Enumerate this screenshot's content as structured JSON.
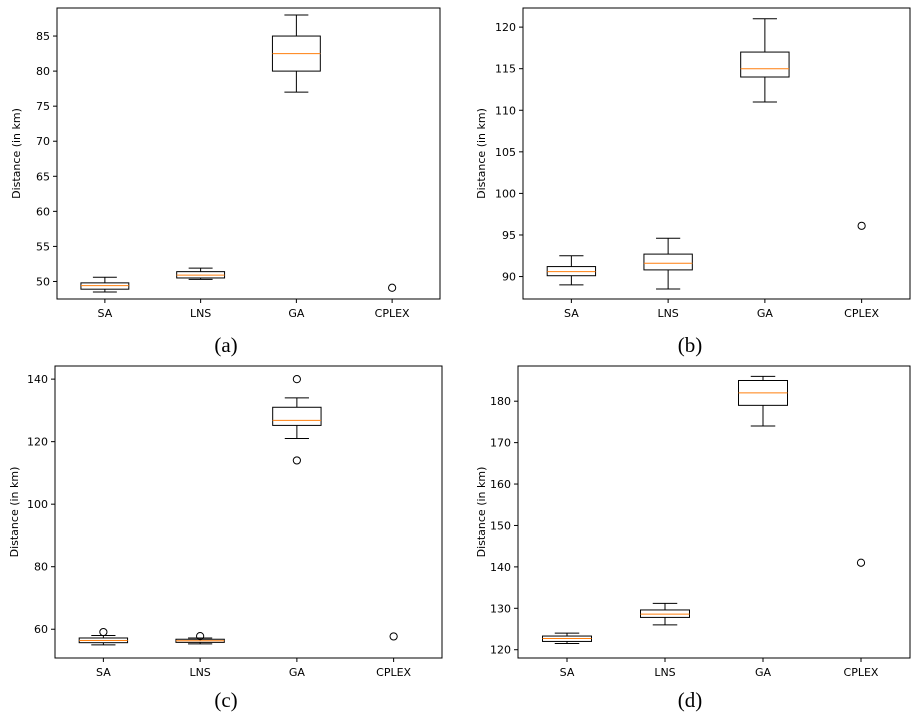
{
  "chart_data": [
    {
      "type": "box",
      "caption": "(a)",
      "ylabel": "Distance (in km)",
      "categories": [
        "SA",
        "LNS",
        "GA",
        "CPLEX"
      ],
      "ylim": [
        47.5,
        89
      ],
      "yticks": [
        50,
        55,
        60,
        65,
        70,
        75,
        80,
        85
      ],
      "boxes": [
        {
          "label": "SA",
          "min": 48.5,
          "q1": 48.9,
          "median": 49.4,
          "q3": 49.8,
          "max": 50.6,
          "fliers": []
        },
        {
          "label": "LNS",
          "min": 50.3,
          "q1": 50.5,
          "median": 50.9,
          "q3": 51.4,
          "max": 51.9,
          "fliers": []
        },
        {
          "label": "GA",
          "min": 77,
          "q1": 80,
          "median": 82.5,
          "q3": 85,
          "max": 88,
          "fliers": []
        },
        {
          "label": "CPLEX",
          "min": null,
          "q1": null,
          "median": 49.1,
          "q3": null,
          "max": null,
          "fliers": [
            49.1
          ]
        }
      ]
    },
    {
      "type": "box",
      "caption": "(b)",
      "ylabel": "Distance (in km)",
      "categories": [
        "SA",
        "LNS",
        "GA",
        "CPLEX"
      ],
      "ylim": [
        87.3,
        122.3
      ],
      "yticks": [
        90,
        95,
        100,
        105,
        110,
        115,
        120
      ],
      "boxes": [
        {
          "label": "SA",
          "min": 89,
          "q1": 90.1,
          "median": 90.6,
          "q3": 91.2,
          "max": 92.5,
          "fliers": []
        },
        {
          "label": "LNS",
          "min": 88.5,
          "q1": 90.8,
          "median": 91.6,
          "q3": 92.7,
          "max": 94.6,
          "fliers": []
        },
        {
          "label": "GA",
          "min": 111,
          "q1": 114,
          "median": 115,
          "q3": 117,
          "max": 121,
          "fliers": []
        },
        {
          "label": "CPLEX",
          "min": null,
          "q1": null,
          "median": 96.1,
          "q3": null,
          "max": null,
          "fliers": [
            96.1
          ]
        }
      ]
    },
    {
      "type": "box",
      "caption": "(c)",
      "ylabel": "Distance (in km)",
      "categories": [
        "SA",
        "LNS",
        "GA",
        "CPLEX"
      ],
      "ylim": [
        50.8,
        144.2
      ],
      "yticks": [
        60,
        80,
        100,
        120,
        140
      ],
      "boxes": [
        {
          "label": "SA",
          "min": 55,
          "q1": 55.7,
          "median": 56.4,
          "q3": 57.2,
          "max": 58,
          "fliers": [
            59.1
          ]
        },
        {
          "label": "LNS",
          "min": 55.3,
          "q1": 55.8,
          "median": 56.3,
          "q3": 56.8,
          "max": 57.2,
          "fliers": [
            57.8
          ]
        },
        {
          "label": "GA",
          "min": 121,
          "q1": 125.2,
          "median": 126.8,
          "q3": 131,
          "max": 134,
          "fliers": [
            140,
            114
          ]
        },
        {
          "label": "CPLEX",
          "min": null,
          "q1": null,
          "median": 57.7,
          "q3": null,
          "max": null,
          "fliers": [
            57.7
          ]
        }
      ]
    },
    {
      "type": "box",
      "caption": "(d)",
      "ylabel": "Distance (in km)",
      "categories": [
        "SA",
        "LNS",
        "GA",
        "CPLEX"
      ],
      "ylim": [
        118,
        188.5
      ],
      "yticks": [
        120,
        130,
        140,
        150,
        160,
        170,
        180
      ],
      "boxes": [
        {
          "label": "SA",
          "min": 121.5,
          "q1": 122,
          "median": 122.7,
          "q3": 123.3,
          "max": 124,
          "fliers": []
        },
        {
          "label": "LNS",
          "min": 126,
          "q1": 127.8,
          "median": 128.6,
          "q3": 129.6,
          "max": 131.2,
          "fliers": []
        },
        {
          "label": "GA",
          "min": 174,
          "q1": 179,
          "median": 182,
          "q3": 185,
          "max": 186,
          "fliers": []
        },
        {
          "label": "CPLEX",
          "min": null,
          "q1": null,
          "median": 141,
          "q3": null,
          "max": null,
          "fliers": [
            141
          ]
        }
      ]
    }
  ],
  "colors": {
    "box": "#000000",
    "median": "#ff7f0e",
    "axes": "#000000",
    "background": "#ffffff"
  }
}
